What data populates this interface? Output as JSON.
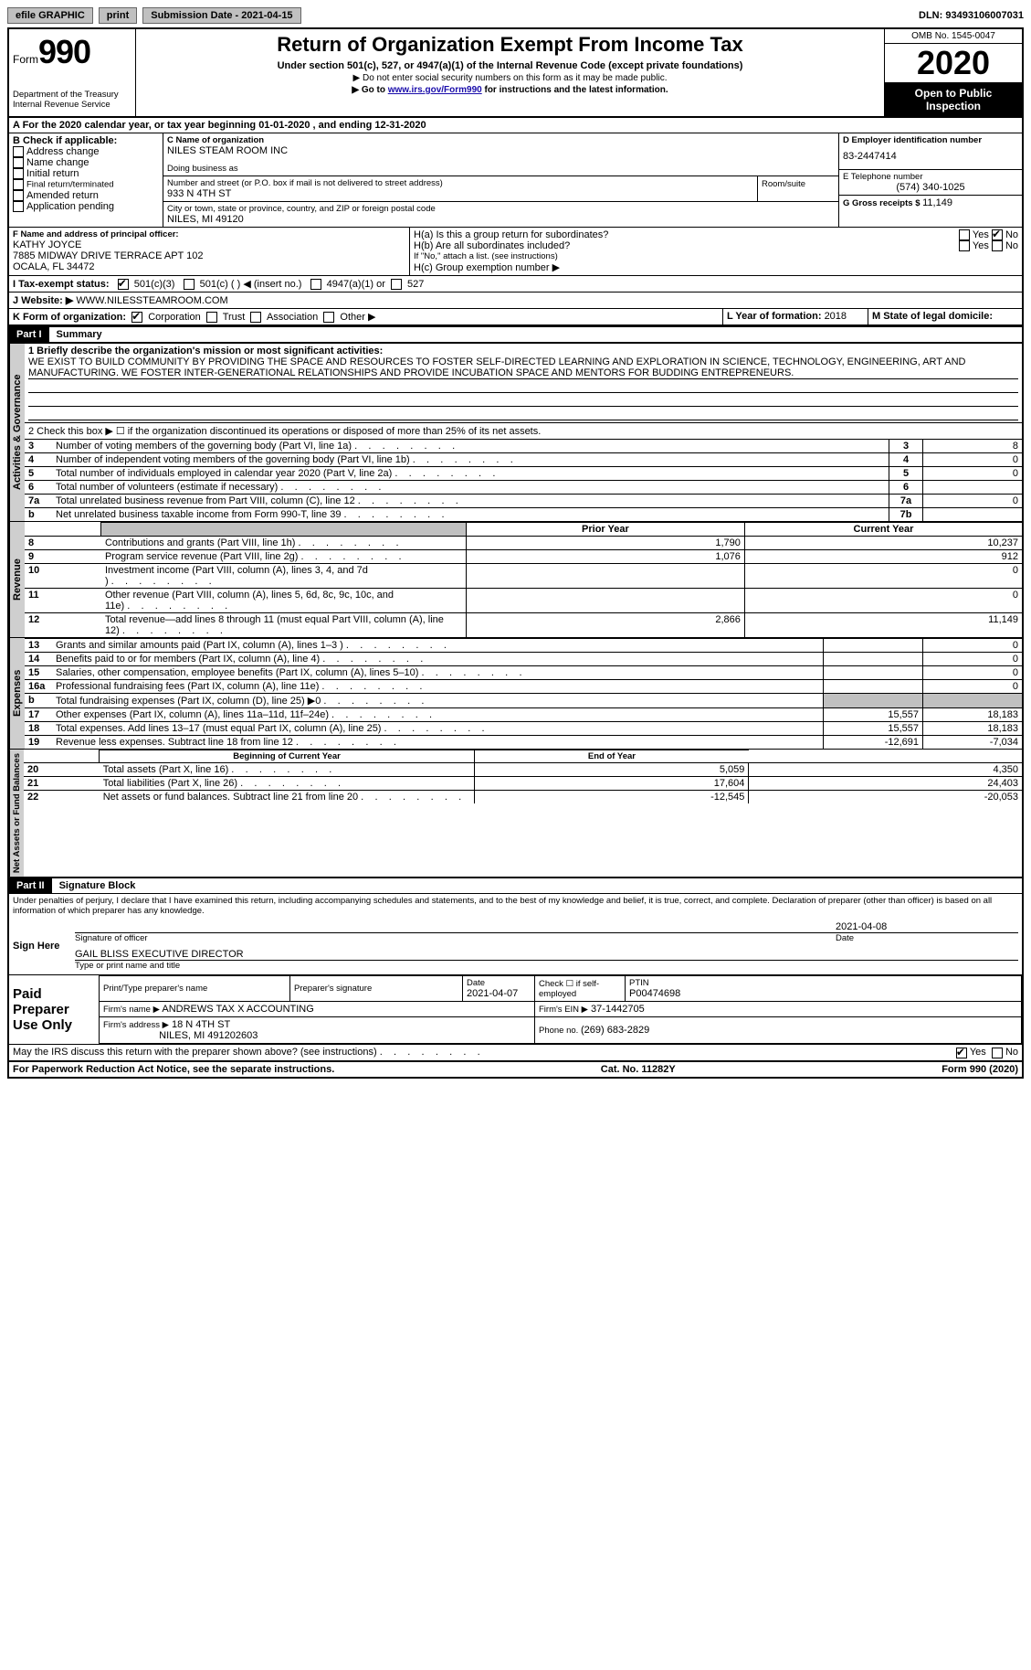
{
  "topbar": {
    "efile": "efile GRAPHIC",
    "print": "print",
    "submission_label": "Submission Date - ",
    "submission_date": "2021-04-15",
    "dln_label": "DLN: ",
    "dln": "93493106007031"
  },
  "header": {
    "form_label": "Form",
    "form_num": "990",
    "dept1": "Department of the Treasury",
    "dept2": "Internal Revenue Service",
    "title": "Return of Organization Exempt From Income Tax",
    "sub": "Under section 501(c), 527, or 4947(a)(1) of the Internal Revenue Code (except private foundations)",
    "line1": "▶ Do not enter social security numbers on this form as it may be made public.",
    "line2_pre": "▶ Go to ",
    "line2_link": "www.irs.gov/Form990",
    "line2_post": " for instructions and the latest information.",
    "omb": "OMB No. 1545-0047",
    "year": "2020",
    "inspect1": "Open to Public",
    "inspect2": "Inspection"
  },
  "periodA": "A For the 2020 calendar year, or tax year beginning 01-01-2020   , and ending 12-31-2020",
  "boxB": {
    "label": "B Check if applicable:",
    "items": [
      "Address change",
      "Name change",
      "Initial return",
      "Final return/terminated",
      "Amended return",
      "Application pending"
    ]
  },
  "boxC": {
    "name_lbl": "C Name of organization",
    "name": "NILES STEAM ROOM INC",
    "dba_lbl": "Doing business as",
    "addr_lbl": "Number and street (or P.O. box if mail is not delivered to street address)",
    "room_lbl": "Room/suite",
    "addr": "933 N 4TH ST",
    "city_lbl": "City or town, state or province, country, and ZIP or foreign postal code",
    "city": "NILES, MI  49120"
  },
  "boxD": {
    "lbl": "D Employer identification number",
    "val": "83-2447414"
  },
  "boxE": {
    "lbl": "E Telephone number",
    "val": "(574) 340-1025"
  },
  "boxG": {
    "lbl": "G Gross receipts $ ",
    "val": "11,149"
  },
  "boxF": {
    "lbl": "F Name and address of principal officer:",
    "name": "KATHY JOYCE",
    "addr1": "7885 MIDWAY DRIVE TERRACE APT 102",
    "addr2": "OCALA, FL  34472"
  },
  "boxH": {
    "a_lbl": "H(a)  Is this a group return for subordinates?",
    "b_lbl": "H(b)  Are all subordinates included?",
    "b_note": "If \"No,\" attach a list. (see instructions)",
    "c_lbl": "H(c)  Group exemption number ▶",
    "yes": "Yes",
    "no": "No"
  },
  "boxI": {
    "lbl": "I  Tax-exempt status:",
    "opts": [
      "501(c)(3)",
      "501(c) ( ) ◀ (insert no.)",
      "4947(a)(1) or",
      "527"
    ]
  },
  "boxJ": {
    "lbl": "J  Website: ▶",
    "val": "WWW.NILESSTEAMROOM.COM"
  },
  "boxK": {
    "lbl": "K Form of organization:",
    "opts": [
      "Corporation",
      "Trust",
      "Association",
      "Other ▶"
    ]
  },
  "boxL": {
    "lbl": "L Year of formation: ",
    "val": "2018"
  },
  "boxM": {
    "lbl": "M State of legal domicile:",
    "val": ""
  },
  "part1": {
    "hdr": "Part I",
    "title": "Summary",
    "q1_lbl": "1  Briefly describe the organization's mission or most significant activities:",
    "q1_text": "WE EXIST TO BUILD COMMUNITY BY PROVIDING THE SPACE AND RESOURCES TO FOSTER SELF-DIRECTED LEARNING AND EXPLORATION IN SCIENCE, TECHNOLOGY, ENGINEERING, ART AND MANUFACTURING. WE FOSTER INTER-GENERATIONAL RELATIONSHIPS AND PROVIDE INCUBATION SPACE AND MENTORS FOR BUDDING ENTREPRENEURS.",
    "q2": "2   Check this box ▶ ☐  if the organization discontinued its operations or disposed of more than 25% of its net assets.",
    "tabs": {
      "gov": "Activities & Governance",
      "rev": "Revenue",
      "exp": "Expenses",
      "net": "Net Assets or Fund Balances"
    },
    "lines_gov": [
      {
        "n": "3",
        "t": "Number of voting members of the governing body (Part VI, line 1a)",
        "box": "3",
        "v": "8"
      },
      {
        "n": "4",
        "t": "Number of independent voting members of the governing body (Part VI, line 1b)",
        "box": "4",
        "v": "0"
      },
      {
        "n": "5",
        "t": "Total number of individuals employed in calendar year 2020 (Part V, line 2a)",
        "box": "5",
        "v": "0"
      },
      {
        "n": "6",
        "t": "Total number of volunteers (estimate if necessary)",
        "box": "6",
        "v": ""
      },
      {
        "n": "7a",
        "t": "Total unrelated business revenue from Part VIII, column (C), line 12",
        "box": "7a",
        "v": "0"
      },
      {
        "n": "b",
        "t": "Net unrelated business taxable income from Form 990-T, line 39",
        "box": "7b",
        "v": ""
      }
    ],
    "col_hdrs": {
      "prior": "Prior Year",
      "current": "Current Year"
    },
    "lines_rev": [
      {
        "n": "8",
        "t": "Contributions and grants (Part VIII, line 1h)",
        "p": "1,790",
        "c": "10,237"
      },
      {
        "n": "9",
        "t": "Program service revenue (Part VIII, line 2g)",
        "p": "1,076",
        "c": "912"
      },
      {
        "n": "10",
        "t": "Investment income (Part VIII, column (A), lines 3, 4, and 7d )",
        "p": "",
        "c": "0"
      },
      {
        "n": "11",
        "t": "Other revenue (Part VIII, column (A), lines 5, 6d, 8c, 9c, 10c, and 11e)",
        "p": "",
        "c": "0"
      },
      {
        "n": "12",
        "t": "Total revenue—add lines 8 through 11 (must equal Part VIII, column (A), line 12)",
        "p": "2,866",
        "c": "11,149"
      }
    ],
    "lines_exp": [
      {
        "n": "13",
        "t": "Grants and similar amounts paid (Part IX, column (A), lines 1–3 )",
        "p": "",
        "c": "0"
      },
      {
        "n": "14",
        "t": "Benefits paid to or for members (Part IX, column (A), line 4)",
        "p": "",
        "c": "0"
      },
      {
        "n": "15",
        "t": "Salaries, other compensation, employee benefits (Part IX, column (A), lines 5–10)",
        "p": "",
        "c": "0"
      },
      {
        "n": "16a",
        "t": "Professional fundraising fees (Part IX, column (A), line 11e)",
        "p": "",
        "c": "0"
      },
      {
        "n": "b",
        "t": "Total fundraising expenses (Part IX, column (D), line 25) ▶0",
        "p": "grey",
        "c": "grey"
      },
      {
        "n": "17",
        "t": "Other expenses (Part IX, column (A), lines 11a–11d, 11f–24e)",
        "p": "15,557",
        "c": "18,183"
      },
      {
        "n": "18",
        "t": "Total expenses. Add lines 13–17 (must equal Part IX, column (A), line 25)",
        "p": "15,557",
        "c": "18,183"
      },
      {
        "n": "19",
        "t": "Revenue less expenses. Subtract line 18 from line 12",
        "p": "-12,691",
        "c": "-7,034"
      }
    ],
    "col_hdrs2": {
      "beg": "Beginning of Current Year",
      "end": "End of Year"
    },
    "lines_net": [
      {
        "n": "20",
        "t": "Total assets (Part X, line 16)",
        "p": "5,059",
        "c": "4,350"
      },
      {
        "n": "21",
        "t": "Total liabilities (Part X, line 26)",
        "p": "17,604",
        "c": "24,403"
      },
      {
        "n": "22",
        "t": "Net assets or fund balances. Subtract line 21 from line 20",
        "p": "-12,545",
        "c": "-20,053"
      }
    ]
  },
  "part2": {
    "hdr": "Part II",
    "title": "Signature Block",
    "decl": "Under penalties of perjury, I declare that I have examined this return, including accompanying schedules and statements, and to the best of my knowledge and belief, it is true, correct, and complete. Declaration of preparer (other than officer) is based on all information of which preparer has any knowledge.",
    "sign_here": "Sign Here",
    "sig_officer": "Signature of officer",
    "sig_date": "2021-04-08",
    "date_lbl": "Date",
    "name_title": "GAIL BLISS EXECUTIVE DIRECTOR",
    "name_lbl": "Type or print name and title",
    "paid": "Paid Preparer Use Only",
    "prep_name_lbl": "Print/Type preparer's name",
    "prep_sig_lbl": "Preparer's signature",
    "prep_date_lbl": "Date",
    "prep_date": "2021-04-07",
    "check_lbl": "Check ☐ if self-employed",
    "ptin_lbl": "PTIN",
    "ptin": "P00474698",
    "firm_name_lbl": "Firm's name   ▶",
    "firm_name": "ANDREWS TAX X ACCOUNTING",
    "firm_ein_lbl": "Firm's EIN ▶",
    "firm_ein": "37-1442705",
    "firm_addr_lbl": "Firm's address ▶",
    "firm_addr1": "18 N 4TH ST",
    "firm_addr2": "NILES, MI  491202603",
    "phone_lbl": "Phone no. ",
    "phone": "(269) 683-2829",
    "discuss": "May the IRS discuss this return with the preparer shown above? (see instructions)"
  },
  "footer": {
    "left": "For Paperwork Reduction Act Notice, see the separate instructions.",
    "mid": "Cat. No. 11282Y",
    "right": "Form 990 (2020)"
  }
}
